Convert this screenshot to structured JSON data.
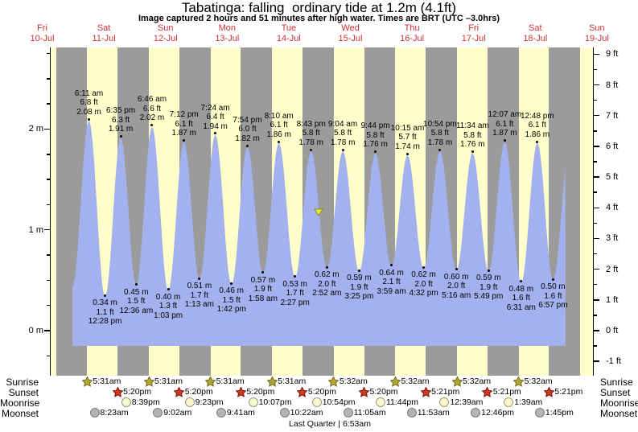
{
  "title": "Tabatinga: falling  ordinary tide at 1.2m (4.1ft)",
  "subtitle": "Image captured 2 hours and 51 minutes after high water. Times are BRT (UTC –3.0hrs)",
  "days": [
    {
      "name": "Fri",
      "date": "10-Jul"
    },
    {
      "name": "Sat",
      "date": "11-Jul"
    },
    {
      "name": "Sun",
      "date": "12-Jul"
    },
    {
      "name": "Mon",
      "date": "13-Jul"
    },
    {
      "name": "Tue",
      "date": "14-Jul"
    },
    {
      "name": "Wed",
      "date": "15-Jul"
    },
    {
      "name": "Thu",
      "date": "16-Jul"
    },
    {
      "name": "Fri",
      "date": "17-Jul"
    },
    {
      "name": "Sat",
      "date": "18-Jul"
    },
    {
      "name": "Sun",
      "date": "19-Jul"
    }
  ],
  "chart_data": {
    "type": "area",
    "title": "Tide height curve for Tabatinga, 10-19 July",
    "left_axis": {
      "unit": "m",
      "ticks": [
        "0 m",
        "1 m",
        "2 m"
      ]
    },
    "right_axis": {
      "unit": "ft",
      "min": -1,
      "max": 9
    },
    "tide_extremes": [
      {
        "type": "high",
        "day": 1,
        "time": "6:11 am",
        "ft": "6.8 ft",
        "m": "2.08 m",
        "height_m": 2.08
      },
      {
        "type": "low",
        "day": 1,
        "time": "12:28 pm",
        "m": "0.34 m",
        "ft": "1.1 ft",
        "height_m": 0.34
      },
      {
        "type": "high",
        "day": 1,
        "time": "6:35 pm",
        "ft": "6.3 ft",
        "m": "1.91 m",
        "height_m": 1.91
      },
      {
        "type": "low",
        "day": 2,
        "time": "12:36 am",
        "m": "0.45 m",
        "ft": "1.5 ft",
        "height_m": 0.45
      },
      {
        "type": "high",
        "day": 2,
        "time": "6:46 am",
        "ft": "6.6 ft",
        "m": "2.02 m",
        "height_m": 2.02
      },
      {
        "type": "low",
        "day": 2,
        "time": "1:03 pm",
        "m": "0.40 m",
        "ft": "1.3 ft",
        "height_m": 0.4
      },
      {
        "type": "high",
        "day": 2,
        "time": "7:12 pm",
        "ft": "6.1 ft",
        "m": "1.87 m",
        "height_m": 1.87
      },
      {
        "type": "low",
        "day": 3,
        "time": "1:13 am",
        "m": "0.51 m",
        "ft": "1.7 ft",
        "height_m": 0.51
      },
      {
        "type": "high",
        "day": 3,
        "time": "7:24 am",
        "ft": "6.4 ft",
        "m": "1.94 m",
        "height_m": 1.94
      },
      {
        "type": "low",
        "day": 3,
        "time": "1:42 pm",
        "m": "0.46 m",
        "ft": "1.5 ft",
        "height_m": 0.46
      },
      {
        "type": "high",
        "day": 3,
        "time": "7:54 pm",
        "ft": "6.0 ft",
        "m": "1.82 m",
        "height_m": 1.82
      },
      {
        "type": "low",
        "day": 4,
        "time": "1:58 am",
        "m": "0.57 m",
        "ft": "1.9 ft",
        "height_m": 0.57
      },
      {
        "type": "high",
        "day": 4,
        "time": "8:10 am",
        "ft": "6.1 ft",
        "m": "1.86 m",
        "height_m": 1.86
      },
      {
        "type": "low",
        "day": 4,
        "time": "2:27 pm",
        "m": "0.53 m",
        "ft": "1.7 ft",
        "height_m": 0.53
      },
      {
        "type": "high",
        "day": 4,
        "time": "8:43 pm",
        "ft": "5.8 ft",
        "m": "1.78 m",
        "height_m": 1.78
      },
      {
        "type": "low",
        "day": 5,
        "time": "2:52 am",
        "m": "0.62 m",
        "ft": "2.0 ft",
        "height_m": 0.62
      },
      {
        "type": "high",
        "day": 5,
        "time": "9:04 am",
        "ft": "5.8 ft",
        "m": "1.78 m",
        "height_m": 1.78
      },
      {
        "type": "low",
        "day": 5,
        "time": "3:25 pm",
        "m": "0.59 m",
        "ft": "1.9 ft",
        "height_m": 0.59
      },
      {
        "type": "high",
        "day": 5,
        "time": "9:44 pm",
        "ft": "5.8 ft",
        "m": "1.76 m",
        "height_m": 1.76
      },
      {
        "type": "low",
        "day": 6,
        "time": "3:59 am",
        "m": "0.64 m",
        "ft": "2.1 ft",
        "height_m": 0.64
      },
      {
        "type": "high",
        "day": 6,
        "time": "10:15 am",
        "ft": "5.7 ft",
        "m": "1.74 m",
        "height_m": 1.74
      },
      {
        "type": "low",
        "day": 6,
        "time": "4:32 pm",
        "m": "0.62 m",
        "ft": "2.0 ft",
        "height_m": 0.62
      },
      {
        "type": "high",
        "day": 6,
        "time": "10:54 pm",
        "ft": "5.8 ft",
        "m": "1.78 m",
        "height_m": 1.78
      },
      {
        "type": "low",
        "day": 7,
        "time": "5:16 am",
        "m": "0.60 m",
        "ft": "2.0 ft",
        "height_m": 0.6
      },
      {
        "type": "high",
        "day": 7,
        "time": "11:34 am",
        "ft": "5.8 ft",
        "m": "1.76 m",
        "height_m": 1.76
      },
      {
        "type": "low",
        "day": 7,
        "time": "5:49 pm",
        "m": "0.59 m",
        "ft": "1.9 ft",
        "height_m": 0.59
      },
      {
        "type": "high",
        "day": 8,
        "time": "12:07 am",
        "ft": "6.1 ft",
        "m": "1.87 m",
        "height_m": 1.87
      },
      {
        "type": "low",
        "day": 8,
        "time": "6:31 am",
        "m": "0.48 m",
        "ft": "1.6 ft",
        "height_m": 0.48
      },
      {
        "type": "high",
        "day": 8,
        "time": "12:48 pm",
        "ft": "6.1 ft",
        "m": "1.86 m",
        "height_m": 1.86
      },
      {
        "type": "low",
        "day": 8,
        "time": "6:57 pm",
        "m": "0.50 m",
        "ft": "1.6 ft",
        "height_m": 0.5
      }
    ],
    "boundary_points": {
      "start": {
        "type": "low",
        "day": 0,
        "time": "11:45 pm",
        "height_m": 0.44
      },
      "end": {
        "type": "high",
        "day": 9,
        "time": "1:15 am",
        "height_m": 1.8
      }
    },
    "current_marker": {
      "height_m": 1.2,
      "day": 4,
      "time": "11:34 pm"
    },
    "day_night_bands": [
      {
        "day": 0,
        "sunrise": null,
        "sunset": "5:20pm"
      },
      {
        "day": 1,
        "sunrise": "5:31am",
        "sunset": "5:20pm"
      },
      {
        "day": 2,
        "sunrise": "5:31am",
        "sunset": "5:20pm"
      },
      {
        "day": 3,
        "sunrise": "5:31am",
        "sunset": "5:20pm"
      },
      {
        "day": 4,
        "sunrise": "5:31am",
        "sunset": "5:20pm"
      },
      {
        "day": 5,
        "sunrise": "5:32am",
        "sunset": "5:20pm"
      },
      {
        "day": 6,
        "sunrise": "5:32am",
        "sunset": "5:21pm"
      },
      {
        "day": 7,
        "sunrise": "5:32am",
        "sunset": "5:21pm"
      },
      {
        "day": 8,
        "sunrise": "5:32am",
        "sunset": "5:21pm"
      },
      {
        "day": 9,
        "sunrise": "5:32am",
        "sunset": null
      }
    ]
  },
  "astro": {
    "row_labels": [
      "Sunrise",
      "Sunset",
      "Moonrise",
      "Moonset"
    ],
    "sunrise": [
      {
        "day": 1,
        "time": "5:31am"
      },
      {
        "day": 2,
        "time": "5:31am"
      },
      {
        "day": 3,
        "time": "5:31am"
      },
      {
        "day": 4,
        "time": "5:31am"
      },
      {
        "day": 5,
        "time": "5:32am"
      },
      {
        "day": 6,
        "time": "5:32am"
      },
      {
        "day": 7,
        "time": "5:32am"
      },
      {
        "day": 8,
        "time": "5:32am"
      }
    ],
    "sunset": [
      {
        "day": 1,
        "time": "5:20pm"
      },
      {
        "day": 2,
        "time": "5:20pm"
      },
      {
        "day": 3,
        "time": "5:20pm"
      },
      {
        "day": 4,
        "time": "5:20pm"
      },
      {
        "day": 5,
        "time": "5:20pm"
      },
      {
        "day": 6,
        "time": "5:21pm"
      },
      {
        "day": 7,
        "time": "5:21pm"
      },
      {
        "day": 8,
        "time": "5:21pm"
      }
    ],
    "moonrise": [
      {
        "day": 1,
        "time": "8:39pm"
      },
      {
        "day": 2,
        "time": "9:23pm"
      },
      {
        "day": 3,
        "time": "10:07pm"
      },
      {
        "day": 4,
        "time": "10:54pm"
      },
      {
        "day": 5,
        "time": "11:44pm"
      },
      {
        "day": 7,
        "time": "12:39am"
      },
      {
        "day": 8,
        "time": "1:39am"
      }
    ],
    "moonset": [
      {
        "day": 1,
        "time": "8:23am"
      },
      {
        "day": 2,
        "time": "9:02am"
      },
      {
        "day": 3,
        "time": "9:41am"
      },
      {
        "day": 4,
        "time": "10:22am"
      },
      {
        "day": 5,
        "time": "11:05am"
      },
      {
        "day": 6,
        "time": "11:53am"
      },
      {
        "day": 7,
        "time": "12:46pm"
      },
      {
        "day": 8,
        "time": "1:45pm"
      }
    ],
    "footer": "Last Quarter | 6:53am"
  },
  "colors": {
    "night_band": "#9b9b9b",
    "day_band": "#ffffcc",
    "tide_fill": "#a3b1ee",
    "date_text": "#cc3333",
    "sunrise_star_fill": "#b3a636",
    "sunrise_star_stroke": "#6e6815",
    "sunset_star_fill": "#cc3a1e",
    "sunset_star_stroke": "#7a1208",
    "moonrise_fill": "#f8f8cc",
    "moonrise_stroke": "#99997e",
    "moonset_fill": "#b4b4b4",
    "moonset_stroke": "#7d7d7d",
    "marker_fill": "#e8e83e",
    "marker_stroke": "#8b8b24"
  }
}
